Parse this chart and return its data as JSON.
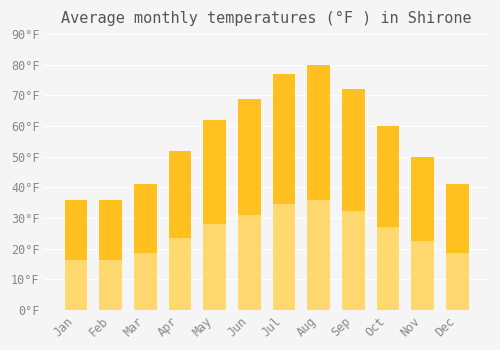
{
  "title": "Average monthly temperatures (°F ) in Shirone",
  "months": [
    "Jan",
    "Feb",
    "Mar",
    "Apr",
    "May",
    "Jun",
    "Jul",
    "Aug",
    "Sep",
    "Oct",
    "Nov",
    "Dec"
  ],
  "values": [
    36,
    36,
    41,
    52,
    62,
    69,
    77,
    80,
    72,
    60,
    50,
    41
  ],
  "bar_color_top": "#FFC020",
  "bar_color_bottom": "#FFD870",
  "ylim": [
    0,
    90
  ],
  "yticks": [
    0,
    10,
    20,
    30,
    40,
    50,
    60,
    70,
    80,
    90
  ],
  "ytick_labels": [
    "0°F",
    "10°F",
    "20°F",
    "30°F",
    "40°F",
    "50°F",
    "60°F",
    "70°F",
    "80°F",
    "90°F"
  ],
  "background_color": "#F5F5F5",
  "grid_color": "#FFFFFF",
  "title_fontsize": 11,
  "tick_fontsize": 8.5,
  "bar_width": 0.65,
  "bar_gradient": true
}
